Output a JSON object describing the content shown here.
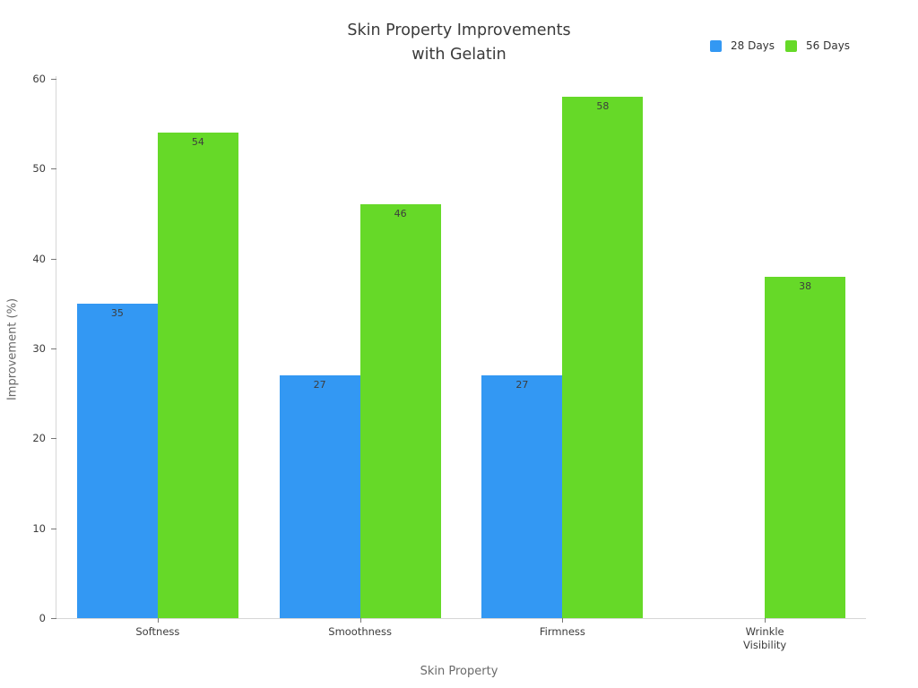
{
  "chart_data": {
    "type": "bar",
    "title_lines": [
      "Skin Property Improvements",
      "with Gelatin"
    ],
    "title": "Skin Property Improvements with Gelatin",
    "xlabel": "Skin Property",
    "ylabel": "Improvement (%)",
    "categories": [
      "Softness",
      "Smoothness",
      "Firmness",
      "Wrinkle\nVisibility"
    ],
    "series": [
      {
        "name": "28 Days",
        "color": "#3398f3",
        "values": [
          35,
          27,
          27,
          null
        ]
      },
      {
        "name": "56 Days",
        "color": "#66d928",
        "values": [
          54,
          46,
          58,
          38
        ]
      }
    ],
    "ylim": [
      0,
      60
    ],
    "yticks": [
      0,
      10,
      20,
      30,
      40,
      50,
      60
    ],
    "grid": false,
    "legend_position": "top-right",
    "colors": {
      "series_28_days": "#3398f3",
      "series_56_days": "#66d928",
      "title_text": "#3a3a3a",
      "axis_title_text": "#6a6a6a",
      "tick_text": "#3c3c3c",
      "spine": "#d6d6d6"
    }
  }
}
